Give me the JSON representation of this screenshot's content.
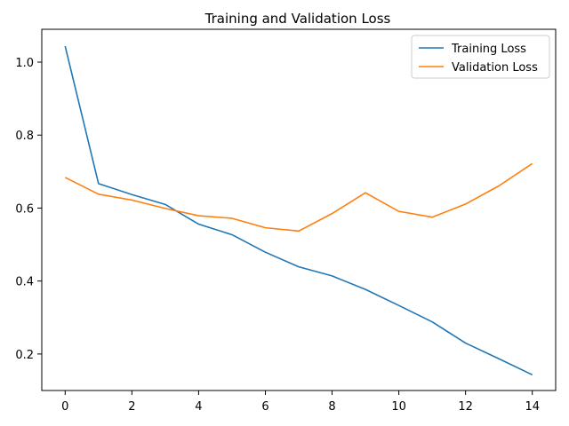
{
  "chart_data": {
    "type": "line",
    "title": "Training and Validation Loss",
    "xlabel": "",
    "ylabel": "",
    "x": [
      0,
      1,
      2,
      3,
      4,
      5,
      6,
      7,
      8,
      9,
      10,
      11,
      12,
      13,
      14
    ],
    "series": [
      {
        "name": "Training Loss",
        "color": "#1f77b4",
        "values": [
          1.044,
          0.667,
          0.637,
          0.61,
          0.556,
          0.527,
          0.479,
          0.439,
          0.414,
          0.377,
          0.333,
          0.288,
          0.23,
          0.187,
          0.143
        ]
      },
      {
        "name": "Validation Loss",
        "color": "#ff7f0e",
        "values": [
          0.684,
          0.638,
          0.622,
          0.599,
          0.579,
          0.572,
          0.546,
          0.537,
          0.585,
          0.642,
          0.591,
          0.575,
          0.611,
          0.661,
          0.722
        ]
      }
    ],
    "xlim": [
      -0.7,
      14.7
    ],
    "ylim": [
      0.1,
      1.09
    ],
    "xticks": [
      0,
      2,
      4,
      6,
      8,
      10,
      12,
      14
    ],
    "xtick_labels": [
      "0",
      "2",
      "4",
      "6",
      "8",
      "10",
      "12",
      "14"
    ],
    "yticks": [
      0.2,
      0.4,
      0.6,
      0.8,
      1.0
    ],
    "ytick_labels": [
      "0.2",
      "0.4",
      "0.6",
      "0.8",
      "1.0"
    ],
    "legend_position": "top-right",
    "grid": false
  }
}
